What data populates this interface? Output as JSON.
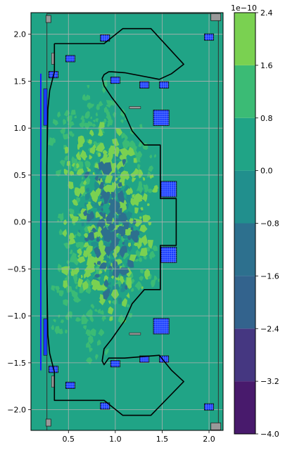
{
  "chart_data": {
    "type": "heatmap",
    "title": "",
    "xlabel": "",
    "ylabel": "",
    "xlim": [
      0.1,
      2.15
    ],
    "ylim": [
      -2.22,
      2.23
    ],
    "xticks": [
      0.5,
      1.0,
      1.5,
      2.0
    ],
    "xtick_labels": [
      "0.5",
      "1.0",
      "1.5",
      "2.0"
    ],
    "yticks": [
      2.0,
      1.5,
      1.0,
      0.5,
      0.0,
      -0.5,
      -1.0,
      -1.5,
      -2.0
    ],
    "ytick_labels": [
      "2.0",
      "1.5",
      "1.0",
      "0.5",
      "0.0",
      "−0.5",
      "−1.0",
      "−1.5",
      "−2.0"
    ],
    "grid": true,
    "background_level": 0.0,
    "colorbar": {
      "multiplier_label": "1e−10",
      "levels": [
        -4.0,
        -3.2,
        -2.4,
        -1.6,
        -0.8,
        0.0,
        0.8,
        1.6,
        2.4
      ],
      "tick_labels": [
        "−4.0",
        "−3.2",
        "−2.4",
        "−1.6",
        "−0.8",
        "0.0",
        "0.8",
        "1.6",
        "2.4"
      ],
      "colors": [
        "#481a6c",
        "#453781",
        "#33638d",
        "#2d708e",
        "#218f8d",
        "#20a486",
        "#3bbb75",
        "#7ad151",
        "#d8e219"
      ]
    },
    "first_wall": [
      [
        0.35,
        1.9
      ],
      [
        0.35,
        1.6
      ],
      [
        0.3,
        1.4
      ],
      [
        0.28,
        1.2
      ],
      [
        0.27,
        0.6
      ],
      [
        0.27,
        -0.6
      ],
      [
        0.28,
        -1.2
      ],
      [
        0.3,
        -1.4
      ],
      [
        0.35,
        -1.6
      ],
      [
        0.35,
        -1.9
      ],
      [
        0.88,
        -1.9
      ],
      [
        1.08,
        -2.06
      ],
      [
        1.38,
        -2.06
      ],
      [
        1.73,
        -1.7
      ],
      [
        1.6,
        -1.58
      ],
      [
        1.47,
        -1.42
      ],
      [
        1.1,
        -1.45
      ],
      [
        0.96,
        -1.45
      ],
      [
        0.93,
        -1.45
      ],
      [
        0.88,
        -1.52
      ],
      [
        0.86,
        -1.48
      ],
      [
        0.88,
        -1.35
      ],
      [
        0.96,
        -1.25
      ],
      [
        1.1,
        -1.05
      ],
      [
        1.18,
        -0.87
      ],
      [
        1.31,
        -0.72
      ],
      [
        1.48,
        -0.72
      ],
      [
        1.48,
        -0.25
      ],
      [
        1.65,
        -0.25
      ],
      [
        1.65,
        0.25
      ],
      [
        1.48,
        0.25
      ],
      [
        1.48,
        0.82
      ],
      [
        1.31,
        0.82
      ],
      [
        1.18,
        0.97
      ],
      [
        1.1,
        1.15
      ],
      [
        0.96,
        1.33
      ],
      [
        0.88,
        1.45
      ],
      [
        0.86,
        1.53
      ],
      [
        0.88,
        1.57
      ],
      [
        0.93,
        1.6
      ],
      [
        0.96,
        1.6
      ],
      [
        1.1,
        1.59
      ],
      [
        1.47,
        1.52
      ],
      [
        1.6,
        1.58
      ],
      [
        1.73,
        1.68
      ],
      [
        1.38,
        2.06
      ],
      [
        1.08,
        2.06
      ],
      [
        0.88,
        1.9
      ],
      [
        0.35,
        1.9
      ]
    ],
    "coils": [
      [
        0.89,
        1.96
      ],
      [
        0.34,
        1.57
      ],
      [
        0.52,
        1.74
      ],
      [
        1.0,
        1.51
      ],
      [
        1.31,
        1.46
      ],
      [
        1.52,
        1.46
      ],
      [
        2.0,
        1.97
      ],
      [
        1.49,
        1.11
      ],
      [
        1.57,
        0.35
      ],
      [
        1.57,
        -0.35
      ],
      [
        1.49,
        -1.11
      ],
      [
        1.31,
        -1.46
      ],
      [
        1.52,
        -1.46
      ],
      [
        1.0,
        -1.51
      ],
      [
        0.34,
        -1.57
      ],
      [
        0.52,
        -1.74
      ],
      [
        0.89,
        -1.96
      ],
      [
        2.0,
        -1.97
      ]
    ],
    "solenoid": {
      "x": 0.205,
      "y_range": [
        -1.58,
        1.58
      ]
    },
    "blobs": [
      [
        0.65,
        0.8,
        1,
        0.6
      ],
      [
        0.85,
        1.0,
        1,
        0.55
      ],
      [
        1.2,
        0.9,
        1,
        0.5
      ],
      [
        0.55,
        0.3,
        1,
        0.6
      ],
      [
        0.55,
        -0.4,
        1,
        0.6
      ],
      [
        0.7,
        -0.8,
        1,
        0.6
      ],
      [
        1.1,
        -0.8,
        1,
        0.5
      ],
      [
        1.35,
        0.5,
        1,
        0.45
      ],
      [
        1.35,
        -0.5,
        1,
        0.45
      ],
      [
        0.95,
        0.4,
        1,
        0.55
      ],
      [
        0.95,
        -0.2,
        1,
        0.55
      ],
      [
        0.8,
        1.2,
        1,
        0.5
      ],
      [
        0.8,
        -1.2,
        1,
        0.5
      ],
      [
        0.45,
        0.9,
        1,
        0.5
      ],
      [
        0.45,
        -0.9,
        1,
        0.5
      ],
      [
        0.95,
        0.05,
        -1,
        0.7
      ],
      [
        0.95,
        0.4,
        -1,
        0.6
      ],
      [
        0.95,
        -0.3,
        -1,
        0.6
      ],
      [
        1.05,
        0.15,
        -1,
        0.6
      ],
      [
        0.88,
        -0.5,
        -1,
        0.5
      ],
      [
        0.98,
        0.6,
        -1,
        0.5
      ],
      [
        1.02,
        -0.6,
        -1,
        0.5
      ],
      [
        0.7,
        0.1,
        -1,
        0.4
      ],
      [
        1.2,
        0.1,
        -1,
        0.4
      ],
      [
        0.85,
        0.25,
        -1,
        0.55
      ],
      [
        1.1,
        -0.2,
        -1,
        0.5
      ],
      [
        0.95,
        0.0,
        2,
        0.9
      ],
      [
        0.82,
        -0.08,
        2,
        0.8
      ],
      [
        1.12,
        0.3,
        2,
        0.8
      ],
      [
        0.72,
        0.45,
        2,
        0.7
      ],
      [
        1.22,
        -0.35,
        2,
        0.7
      ],
      [
        0.65,
        -0.3,
        2,
        0.7
      ],
      [
        0.9,
        0.7,
        2,
        0.6
      ],
      [
        1.0,
        -0.75,
        2,
        0.6
      ],
      [
        0.6,
        0.6,
        2,
        0.5
      ],
      [
        1.3,
        0.25,
        2,
        0.5
      ],
      [
        0.75,
        -0.55,
        2,
        0.55
      ],
      [
        1.08,
        0.5,
        2,
        0.6
      ],
      [
        0.96,
        -0.35,
        -2,
        0.85
      ],
      [
        0.9,
        0.25,
        -2,
        0.8
      ],
      [
        1.02,
        0.05,
        -2,
        0.8
      ],
      [
        0.92,
        -0.15,
        -2,
        0.75
      ]
    ]
  }
}
